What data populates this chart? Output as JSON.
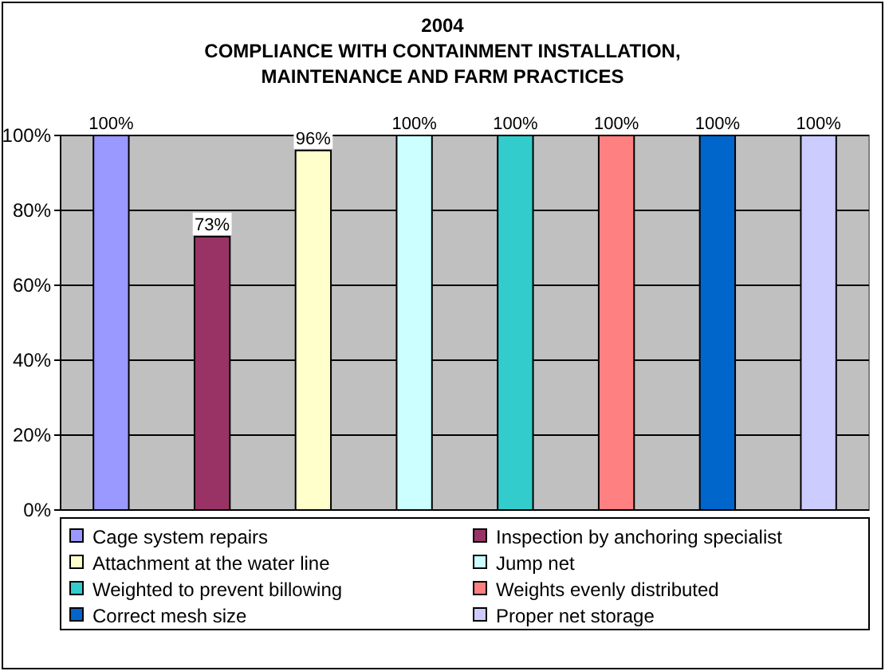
{
  "chart_data": {
    "type": "bar",
    "title": "2004",
    "subtitle": "COMPLIANCE WITH CONTAINMENT INSTALLATION, MAINTENANCE AND FARM PRACTICES",
    "categories": [
      null
    ],
    "series": [
      {
        "name": "Cage system repairs",
        "color": "#9999ff",
        "values": [
          100
        ],
        "value_labels": [
          "100%"
        ]
      },
      {
        "name": "Inspection by anchoring specialist",
        "color": "#993366",
        "values": [
          73
        ],
        "value_labels": [
          "73%"
        ]
      },
      {
        "name": "Attachment at the water line",
        "color": "#ffffcc",
        "values": [
          96
        ],
        "value_labels": [
          "96%"
        ]
      },
      {
        "name": "Jump net",
        "color": "#ccffff",
        "values": [
          100
        ],
        "value_labels": [
          "100%"
        ]
      },
      {
        "name": "Weighted to prevent billowing",
        "color": "#33cccc",
        "values": [
          100
        ],
        "value_labels": [
          "100%"
        ]
      },
      {
        "name": "Weights evenly distributed",
        "color": "#ff8080",
        "values": [
          100
        ],
        "value_labels": [
          "100%"
        ]
      },
      {
        "name": "Correct mesh size",
        "color": "#0066cc",
        "values": [
          100
        ],
        "value_labels": [
          "100%"
        ]
      },
      {
        "name": "Proper net storage",
        "color": "#ccccff",
        "values": [
          100
        ],
        "value_labels": [
          "100%"
        ]
      }
    ],
    "ylim": [
      0,
      100
    ],
    "yticks": [
      {
        "value": 0,
        "label": "0%"
      },
      {
        "value": 20,
        "label": "20%"
      },
      {
        "value": 40,
        "label": "40%"
      },
      {
        "value": 60,
        "label": "60%"
      },
      {
        "value": 80,
        "label": "80%"
      },
      {
        "value": 100,
        "label": "100%"
      }
    ],
    "grid": "y",
    "legend": "bottom"
  }
}
